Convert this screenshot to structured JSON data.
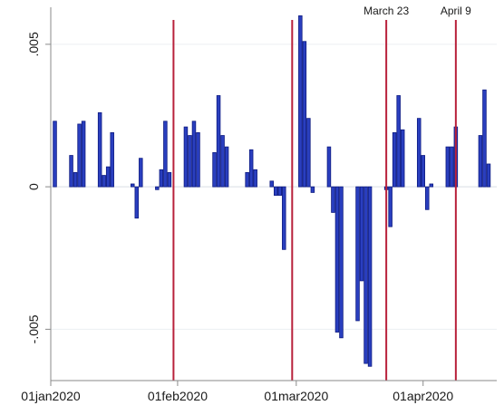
{
  "chart_data": {
    "type": "bar",
    "title": "",
    "xlabel": "",
    "ylabel": "",
    "ylim": [
      -0.0068,
      0.0063
    ],
    "xlim": [
      "2020-01-01",
      "2020-04-19"
    ],
    "grid": true,
    "legend": "none",
    "yticks": [
      {
        "value": -0.005,
        "label": "-.005"
      },
      {
        "value": 0,
        "label": "0"
      },
      {
        "value": 0.005,
        "label": ".005"
      }
    ],
    "xticks": [
      {
        "value": "2020-01-01",
        "label": "01jan2020"
      },
      {
        "value": "2020-02-01",
        "label": "01feb2020"
      },
      {
        "value": "2020-03-01",
        "label": "01mar2020"
      },
      {
        "value": "2020-04-01",
        "label": "01apr2020"
      }
    ],
    "vertical_lines": [
      {
        "date": "2020-01-31",
        "label": ""
      },
      {
        "date": "2020-02-29",
        "label": ""
      },
      {
        "date": "2020-03-23",
        "label": "March 23"
      },
      {
        "date": "2020-04-09",
        "label": "April 9"
      }
    ],
    "colors": {
      "bars": "#2a3fbf",
      "vertical_lines": "#b8213b"
    },
    "series": [
      {
        "values": [
          {
            "x": "2020-01-02",
            "y": 0.0023
          },
          {
            "x": "2020-01-06",
            "y": 0.0011
          },
          {
            "x": "2020-01-07",
            "y": 0.0005
          },
          {
            "x": "2020-01-08",
            "y": 0.0022
          },
          {
            "x": "2020-01-09",
            "y": 0.0023
          },
          {
            "x": "2020-01-13",
            "y": 0.0026
          },
          {
            "x": "2020-01-14",
            "y": 0.0004
          },
          {
            "x": "2020-01-15",
            "y": 0.0007
          },
          {
            "x": "2020-01-16",
            "y": 0.0019
          },
          {
            "x": "2020-01-21",
            "y": 0.0001
          },
          {
            "x": "2020-01-22",
            "y": -0.0011
          },
          {
            "x": "2020-01-23",
            "y": 0.001
          },
          {
            "x": "2020-01-27",
            "y": -0.0001
          },
          {
            "x": "2020-01-28",
            "y": 0.0006
          },
          {
            "x": "2020-01-29",
            "y": 0.0023
          },
          {
            "x": "2020-01-30",
            "y": 0.0005
          },
          {
            "x": "2020-02-03",
            "y": 0.0021
          },
          {
            "x": "2020-02-04",
            "y": 0.0018
          },
          {
            "x": "2020-02-05",
            "y": 0.0023
          },
          {
            "x": "2020-02-06",
            "y": 0.0019
          },
          {
            "x": "2020-02-10",
            "y": 0.0012
          },
          {
            "x": "2020-02-11",
            "y": 0.0032
          },
          {
            "x": "2020-02-12",
            "y": 0.0018
          },
          {
            "x": "2020-02-13",
            "y": 0.0014
          },
          {
            "x": "2020-02-18",
            "y": 0.0005
          },
          {
            "x": "2020-02-19",
            "y": 0.0013
          },
          {
            "x": "2020-02-20",
            "y": 0.0006
          },
          {
            "x": "2020-02-24",
            "y": 0.0002
          },
          {
            "x": "2020-02-25",
            "y": -0.0003
          },
          {
            "x": "2020-02-26",
            "y": -0.0003
          },
          {
            "x": "2020-02-27",
            "y": -0.0022
          },
          {
            "x": "2020-03-02",
            "y": 0.006
          },
          {
            "x": "2020-03-03",
            "y": 0.0051
          },
          {
            "x": "2020-03-04",
            "y": 0.0024
          },
          {
            "x": "2020-03-05",
            "y": -0.0002
          },
          {
            "x": "2020-03-09",
            "y": 0.0014
          },
          {
            "x": "2020-03-10",
            "y": -0.0009
          },
          {
            "x": "2020-03-11",
            "y": -0.0051
          },
          {
            "x": "2020-03-12",
            "y": -0.0053
          },
          {
            "x": "2020-03-16",
            "y": -0.0047
          },
          {
            "x": "2020-03-17",
            "y": -0.0033
          },
          {
            "x": "2020-03-18",
            "y": -0.0062
          },
          {
            "x": "2020-03-19",
            "y": -0.0063
          },
          {
            "x": "2020-03-23",
            "y": -0.0001
          },
          {
            "x": "2020-03-24",
            "y": -0.0014
          },
          {
            "x": "2020-03-25",
            "y": 0.0019
          },
          {
            "x": "2020-03-26",
            "y": 0.0032
          },
          {
            "x": "2020-03-27",
            "y": 0.002
          },
          {
            "x": "2020-03-31",
            "y": 0.0024
          },
          {
            "x": "2020-04-01",
            "y": 0.0011
          },
          {
            "x": "2020-04-02",
            "y": -0.0008
          },
          {
            "x": "2020-04-03",
            "y": 0.0001
          },
          {
            "x": "2020-04-07",
            "y": 0.0014
          },
          {
            "x": "2020-04-08",
            "y": 0.0014
          },
          {
            "x": "2020-04-09",
            "y": 0.0021
          },
          {
            "x": "2020-04-15",
            "y": 0.0018
          },
          {
            "x": "2020-04-16",
            "y": 0.0034
          },
          {
            "x": "2020-04-17",
            "y": 0.0008
          }
        ]
      }
    ]
  }
}
